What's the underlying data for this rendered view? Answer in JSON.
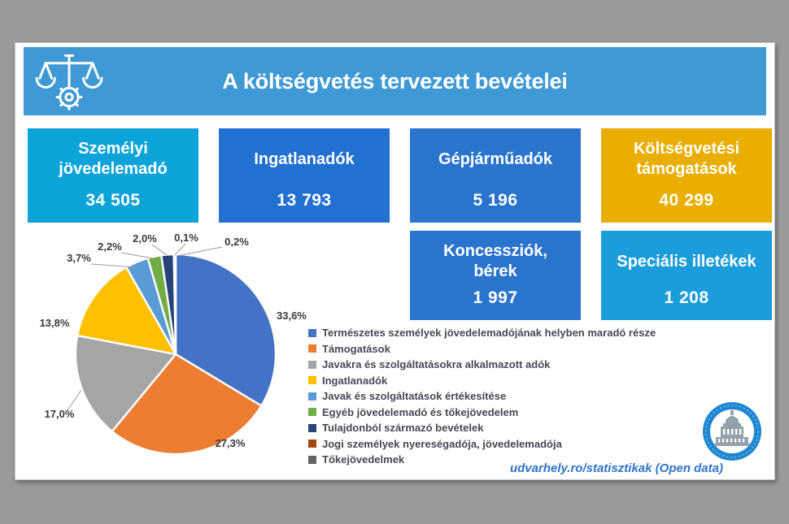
{
  "frame": {
    "background_color": "#9a9a9a",
    "slide_color": "#ffffff"
  },
  "header": {
    "title": "A költségvetés tervezett bevételei",
    "background_color": "#3e99d4",
    "icon": "scales-and-gear-icon"
  },
  "cards": [
    {
      "id": "szemelyi-jovedelemado",
      "title": "Személyi jövedelemadó",
      "value": "34 505",
      "color": "#0ca3d9"
    },
    {
      "id": "ingatlanadok",
      "title": "Ingatlanadók",
      "value": "13 793",
      "color": "#2270d0"
    },
    {
      "id": "gepjarmuadok",
      "title": "Gépjárműadók",
      "value": "5 196",
      "color": "#2a74cd"
    },
    {
      "id": "koltsegvetesi-tamogatasok",
      "title": "Költségvetési támogatások",
      "value": "40 299",
      "color": "#e9ae00"
    },
    {
      "id": "koncessziok-berek",
      "title": "Koncessziók, bérek",
      "value": "1 997",
      "color": "#2a74cd"
    },
    {
      "id": "specialis-illetekek",
      "title": "Speciális illetékek",
      "value": "1 208",
      "color": "#1b9ddb"
    }
  ],
  "chart_data": {
    "type": "pie",
    "labels": [
      "Természetes személyek jövedelemadójának helyben maradó része",
      "Támogatások",
      "Javakra és szolgáltatásokra alkalmazott adók",
      "Ingatlanadók",
      "Javak és szolgáltatások értékesítése",
      "Egyéb jövedelemadó és tőkejövedelem",
      "Tulajdonból származó bevételek",
      "Jogi személyek nyereségadója, jövedelemadója",
      "Tőkejövedelmek"
    ],
    "values": [
      33.6,
      27.3,
      17.0,
      13.8,
      3.7,
      2.2,
      2.0,
      0.1,
      0.2
    ],
    "value_labels": [
      "33,6%",
      "27,3%",
      "17,0%",
      "13,8%",
      "3,7%",
      "2,2%",
      "2,0%",
      "0,1%",
      "0,2%"
    ],
    "colors": [
      "#4472c4",
      "#ed7d31",
      "#a5a5a5",
      "#ffc000",
      "#5b9bd5",
      "#70ad47",
      "#264478",
      "#9e480e",
      "#636363"
    ],
    "title": "",
    "legend_position": "right",
    "start_angle_deg": 0,
    "direction": "clockwise"
  },
  "footer": {
    "credit": "udvarhely.ro/statisztikak (Open data)",
    "credit_color": "#2e74c9",
    "logo": "udvarhely-city-hall-badge"
  }
}
